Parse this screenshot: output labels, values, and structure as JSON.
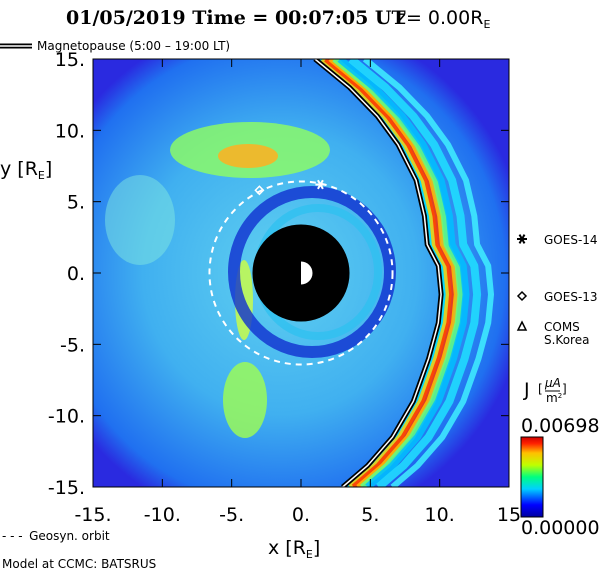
{
  "header": {
    "title": "01/05/2019 Time = 00:07:05 UT",
    "z_prefix": "z= 0.00R",
    "z_sub": "E"
  },
  "legend_top": {
    "label": "Magnetopause (5:00 – 19:00 LT)"
  },
  "chart_data": {
    "type": "heatmap",
    "quantity": "J",
    "units": "μA/m²",
    "xlabel": "x [R",
    "xlabel_sub": "E",
    "ylabel": "y [R",
    "ylabel_sub": "E",
    "xlim": [
      -15,
      15
    ],
    "ylim": [
      -15,
      15
    ],
    "x_ticks": [
      -15,
      -10,
      -5,
      0,
      5,
      10,
      15
    ],
    "x_tick_labels": [
      "-15.",
      "-10.",
      "-5.",
      "0.",
      "5.",
      "10.",
      "15"
    ],
    "y_ticks": [
      15,
      10,
      5,
      0,
      -5,
      -10,
      -15
    ],
    "y_tick_labels": [
      "15.",
      "10.",
      "5.",
      "0.",
      "-5.",
      "-10.",
      "-15."
    ],
    "colorbar": {
      "min_label": "0.00000",
      "max_label": "0.00698",
      "min": 0.0,
      "max": 0.00698
    },
    "geosyn_orbit_radius": 6.6,
    "earth_disc_radius": 3.5,
    "magnetopause": [
      {
        "x": 1.0,
        "y": 15.0
      },
      {
        "x": 3.5,
        "y": 13.0
      },
      {
        "x": 5.5,
        "y": 11.0
      },
      {
        "x": 7.0,
        "y": 9.0
      },
      {
        "x": 8.3,
        "y": 6.5
      },
      {
        "x": 8.9,
        "y": 4.0
      },
      {
        "x": 9.1,
        "y": 2.0
      },
      {
        "x": 9.9,
        "y": 0.5
      },
      {
        "x": 10.1,
        "y": -1.5
      },
      {
        "x": 9.9,
        "y": -3.5
      },
      {
        "x": 9.2,
        "y": -6.0
      },
      {
        "x": 8.1,
        "y": -9.0
      },
      {
        "x": 6.6,
        "y": -11.5
      },
      {
        "x": 4.8,
        "y": -13.5
      },
      {
        "x": 3.0,
        "y": -15.0
      }
    ],
    "satellites": [
      {
        "name": "GOES-14",
        "symbol": "asterisk",
        "x": 1.4,
        "y": 6.2
      },
      {
        "name": "GOES-13",
        "symbol": "diamond",
        "x": -3.0,
        "y": 5.8
      }
    ],
    "legend_items": [
      {
        "label": "GOES-14",
        "symbol": "asterisk"
      },
      {
        "label": "GOES-13",
        "symbol": "diamond"
      },
      {
        "label": "COMS",
        "label2": "S.Korea",
        "symbol": "triangle"
      }
    ]
  },
  "footer": {
    "orbit_label": "Geosyn. orbit",
    "orbit_dashes": "- - -",
    "model_label": "Model at CCMC: BATSRUS",
    "colorbar_quantity": "J",
    "colorbar_num": "μA",
    "colorbar_den": "m",
    "colorbar_den_sup": "2"
  },
  "colors": {
    "plot_background": "#2b2be6",
    "earth_disc": "#000000",
    "magnetopause": "#000000",
    "orbit": "#ffffff"
  }
}
